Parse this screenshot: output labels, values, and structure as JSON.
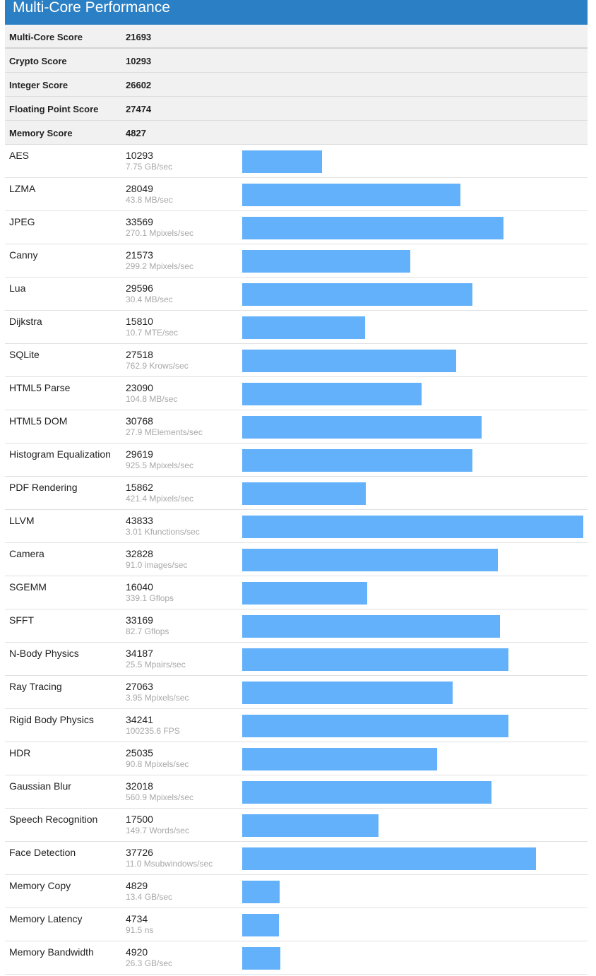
{
  "title": "Multi-Core Performance",
  "accent_color": "#2b80c5",
  "bar_color": "#63b1fa",
  "summary": [
    {
      "label": "Multi-Core Score",
      "value": "21693"
    },
    {
      "label": "Crypto Score",
      "value": "10293"
    },
    {
      "label": "Integer Score",
      "value": "26602"
    },
    {
      "label": "Floating Point Score",
      "value": "27474"
    },
    {
      "label": "Memory Score",
      "value": "4827"
    }
  ],
  "benchmarks": [
    {
      "name": "AES",
      "score": "10293",
      "rate": "7.75 GB/sec"
    },
    {
      "name": "LZMA",
      "score": "28049",
      "rate": "43.8 MB/sec"
    },
    {
      "name": "JPEG",
      "score": "33569",
      "rate": "270.1 Mpixels/sec"
    },
    {
      "name": "Canny",
      "score": "21573",
      "rate": "299.2 Mpixels/sec"
    },
    {
      "name": "Lua",
      "score": "29596",
      "rate": "30.4 MB/sec"
    },
    {
      "name": "Dijkstra",
      "score": "15810",
      "rate": "10.7 MTE/sec"
    },
    {
      "name": "SQLite",
      "score": "27518",
      "rate": "762.9 Krows/sec"
    },
    {
      "name": "HTML5 Parse",
      "score": "23090",
      "rate": "104.8 MB/sec"
    },
    {
      "name": "HTML5 DOM",
      "score": "30768",
      "rate": "27.9 MElements/sec"
    },
    {
      "name": "Histogram Equalization",
      "score": "29619",
      "rate": "925.5 Mpixels/sec"
    },
    {
      "name": "PDF Rendering",
      "score": "15862",
      "rate": "421.4 Mpixels/sec"
    },
    {
      "name": "LLVM",
      "score": "43833",
      "rate": "3.01 Kfunctions/sec"
    },
    {
      "name": "Camera",
      "score": "32828",
      "rate": "91.0 images/sec"
    },
    {
      "name": "SGEMM",
      "score": "16040",
      "rate": "339.1 Gflops"
    },
    {
      "name": "SFFT",
      "score": "33169",
      "rate": "82.7 Gflops"
    },
    {
      "name": "N-Body Physics",
      "score": "34187",
      "rate": "25.5 Mpairs/sec"
    },
    {
      "name": "Ray Tracing",
      "score": "27063",
      "rate": "3.95 Mpixels/sec"
    },
    {
      "name": "Rigid Body Physics",
      "score": "34241",
      "rate": "100235.6 FPS"
    },
    {
      "name": "HDR",
      "score": "25035",
      "rate": "90.8 Mpixels/sec"
    },
    {
      "name": "Gaussian Blur",
      "score": "32018",
      "rate": "560.9 Mpixels/sec"
    },
    {
      "name": "Speech Recognition",
      "score": "17500",
      "rate": "149.7 Words/sec"
    },
    {
      "name": "Face Detection",
      "score": "37726",
      "rate": "11.0 Msubwindows/sec"
    },
    {
      "name": "Memory Copy",
      "score": "4829",
      "rate": "13.4 GB/sec"
    },
    {
      "name": "Memory Latency",
      "score": "4734",
      "rate": "91.5 ns"
    },
    {
      "name": "Memory Bandwidth",
      "score": "4920",
      "rate": "26.3 GB/sec"
    }
  ],
  "chart_data": {
    "type": "bar",
    "categories": [
      "AES",
      "LZMA",
      "JPEG",
      "Canny",
      "Lua",
      "Dijkstra",
      "SQLite",
      "HTML5 Parse",
      "HTML5 DOM",
      "Histogram Equalization",
      "PDF Rendering",
      "LLVM",
      "Camera",
      "SGEMM",
      "SFFT",
      "N-Body Physics",
      "Ray Tracing",
      "Rigid Body Physics",
      "HDR",
      "Gaussian Blur",
      "Speech Recognition",
      "Face Detection",
      "Memory Copy",
      "Memory Latency",
      "Memory Bandwidth"
    ],
    "values": [
      10293,
      28049,
      33569,
      21573,
      29596,
      15810,
      27518,
      23090,
      30768,
      29619,
      15862,
      43833,
      32828,
      16040,
      33169,
      34187,
      27063,
      34241,
      25035,
      32018,
      17500,
      37726,
      4829,
      4734,
      4920
    ],
    "title": "Multi-Core Performance",
    "xlabel": "",
    "ylabel": "",
    "ylim": [
      0,
      43833
    ]
  }
}
